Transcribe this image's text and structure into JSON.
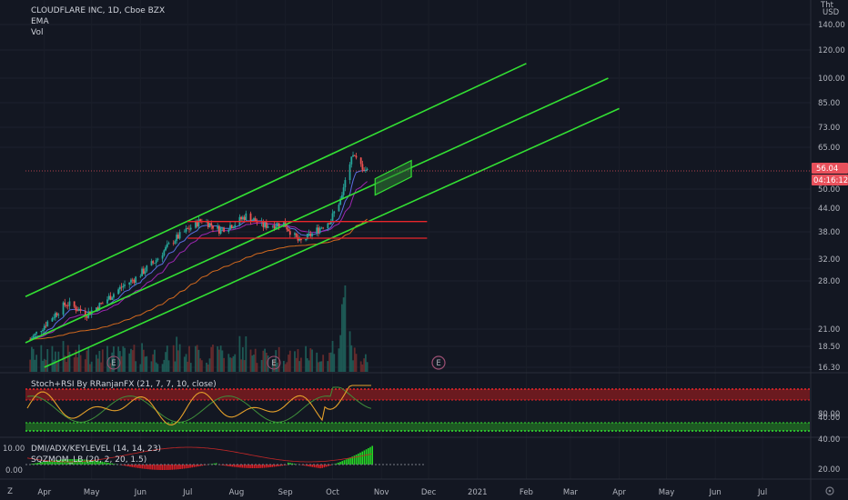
{
  "header": {
    "symbol": "CLOUDFLARE INC, 1D, Cboe BZX",
    "line2": "EMA",
    "line3": "Vol",
    "currency": "USD",
    "currency_top": "Tht"
  },
  "price_axis": {
    "ticks": [
      "140.00",
      "120.00",
      "100.00",
      "85.00",
      "73.00",
      "65.00",
      "50.00",
      "44.00",
      "38.00",
      "32.00",
      "28.00",
      "21.00",
      "18.50",
      "16.30"
    ],
    "last_price": "56.04",
    "countdown": "04:16:12"
  },
  "time_axis": {
    "labels": [
      "Apr",
      "May",
      "Jun",
      "Jul",
      "Aug",
      "Sep",
      "Oct",
      "Nov",
      "Dec",
      "2021",
      "Feb",
      "Mar",
      "Apr",
      "May",
      "Jun",
      "Jul"
    ]
  },
  "earnings_markers": [
    "E",
    "E",
    "E"
  ],
  "indicator1": {
    "title": "Stoch+RSI By RRanjanFX (21, 7, 7, 10, close)",
    "ticks": [
      "80.00",
      "40.00"
    ]
  },
  "indicator2": {
    "title1": "DMI/ADX/KEYLEVEL (14, 14, 23)",
    "title2": "SQZMOM_LB (20, 2, 20, 1.5)",
    "ticks_left": [
      "10.00",
      "0.00"
    ],
    "ticks_right": [
      "40.00",
      "20.00"
    ]
  },
  "footer": {
    "left_icon_label": "Z"
  },
  "colors": {
    "background": "#131722",
    "channel": "#33e033",
    "level": "#e8262b",
    "up": "#26a69a",
    "down": "#ef5350",
    "ema_fast": "#5b6ee1",
    "ema_mid": "#9c27b0",
    "ema_slow": "#d2691e"
  },
  "chart_data": {
    "type": "candlestick",
    "title": "CLOUDFLARE INC, 1D, Cboe BZX",
    "x_range": [
      "2020-03-20",
      "2021-07-31"
    ],
    "ylim": [
      16.3,
      140
    ],
    "y_scale": "log",
    "last_price": 56.04,
    "price_path": [
      [
        "2020-03-23",
        19.5
      ],
      [
        "2020-04-01",
        21.5
      ],
      [
        "2020-04-15",
        24.5
      ],
      [
        "2020-04-28",
        23.0
      ],
      [
        "2020-05-08",
        24.5
      ],
      [
        "2020-05-20",
        27.0
      ],
      [
        "2020-05-29",
        28.5
      ],
      [
        "2020-06-10",
        31.5
      ],
      [
        "2020-06-22",
        36.0
      ],
      [
        "2020-07-01",
        38.5
      ],
      [
        "2020-07-10",
        41.0
      ],
      [
        "2020-07-21",
        38.5
      ],
      [
        "2020-07-31",
        40.0
      ],
      [
        "2020-08-07",
        42.0
      ],
      [
        "2020-08-18",
        39.5
      ],
      [
        "2020-08-31",
        40.0
      ],
      [
        "2020-09-10",
        35.5
      ],
      [
        "2020-09-18",
        37.5
      ],
      [
        "2020-09-30",
        41.0
      ],
      [
        "2020-10-07",
        47.5
      ],
      [
        "2020-10-13",
        62.0
      ],
      [
        "2020-10-19",
        58.0
      ],
      [
        "2020-10-23",
        56.04
      ]
    ],
    "channel_lines": [
      {
        "name": "",
        "from": [
          "2020-03-20",
          25.5
        ],
        "to": [
          "2021-02-01",
          110
        ]
      },
      {
        "name": "",
        "from": [
          "2020-03-20",
          19.0
        ],
        "to": [
          "2021-03-25",
          100
        ]
      },
      {
        "name": "",
        "from": [
          "2020-04-01",
          16.3
        ],
        "to": [
          "2021-04-01",
          82
        ]
      }
    ],
    "horizontal_levels": [
      {
        "price": 40.5,
        "from": "2020-07-01",
        "to": "2020-11-30"
      },
      {
        "price": 36.5,
        "from": "2020-07-01",
        "to": "2020-11-30"
      }
    ],
    "annotation_box": {
      "from": [
        "2020-10-28",
        51.0
      ],
      "to": [
        "2020-11-20",
        56.5
      ]
    },
    "legend": "top-left",
    "grid": true
  }
}
